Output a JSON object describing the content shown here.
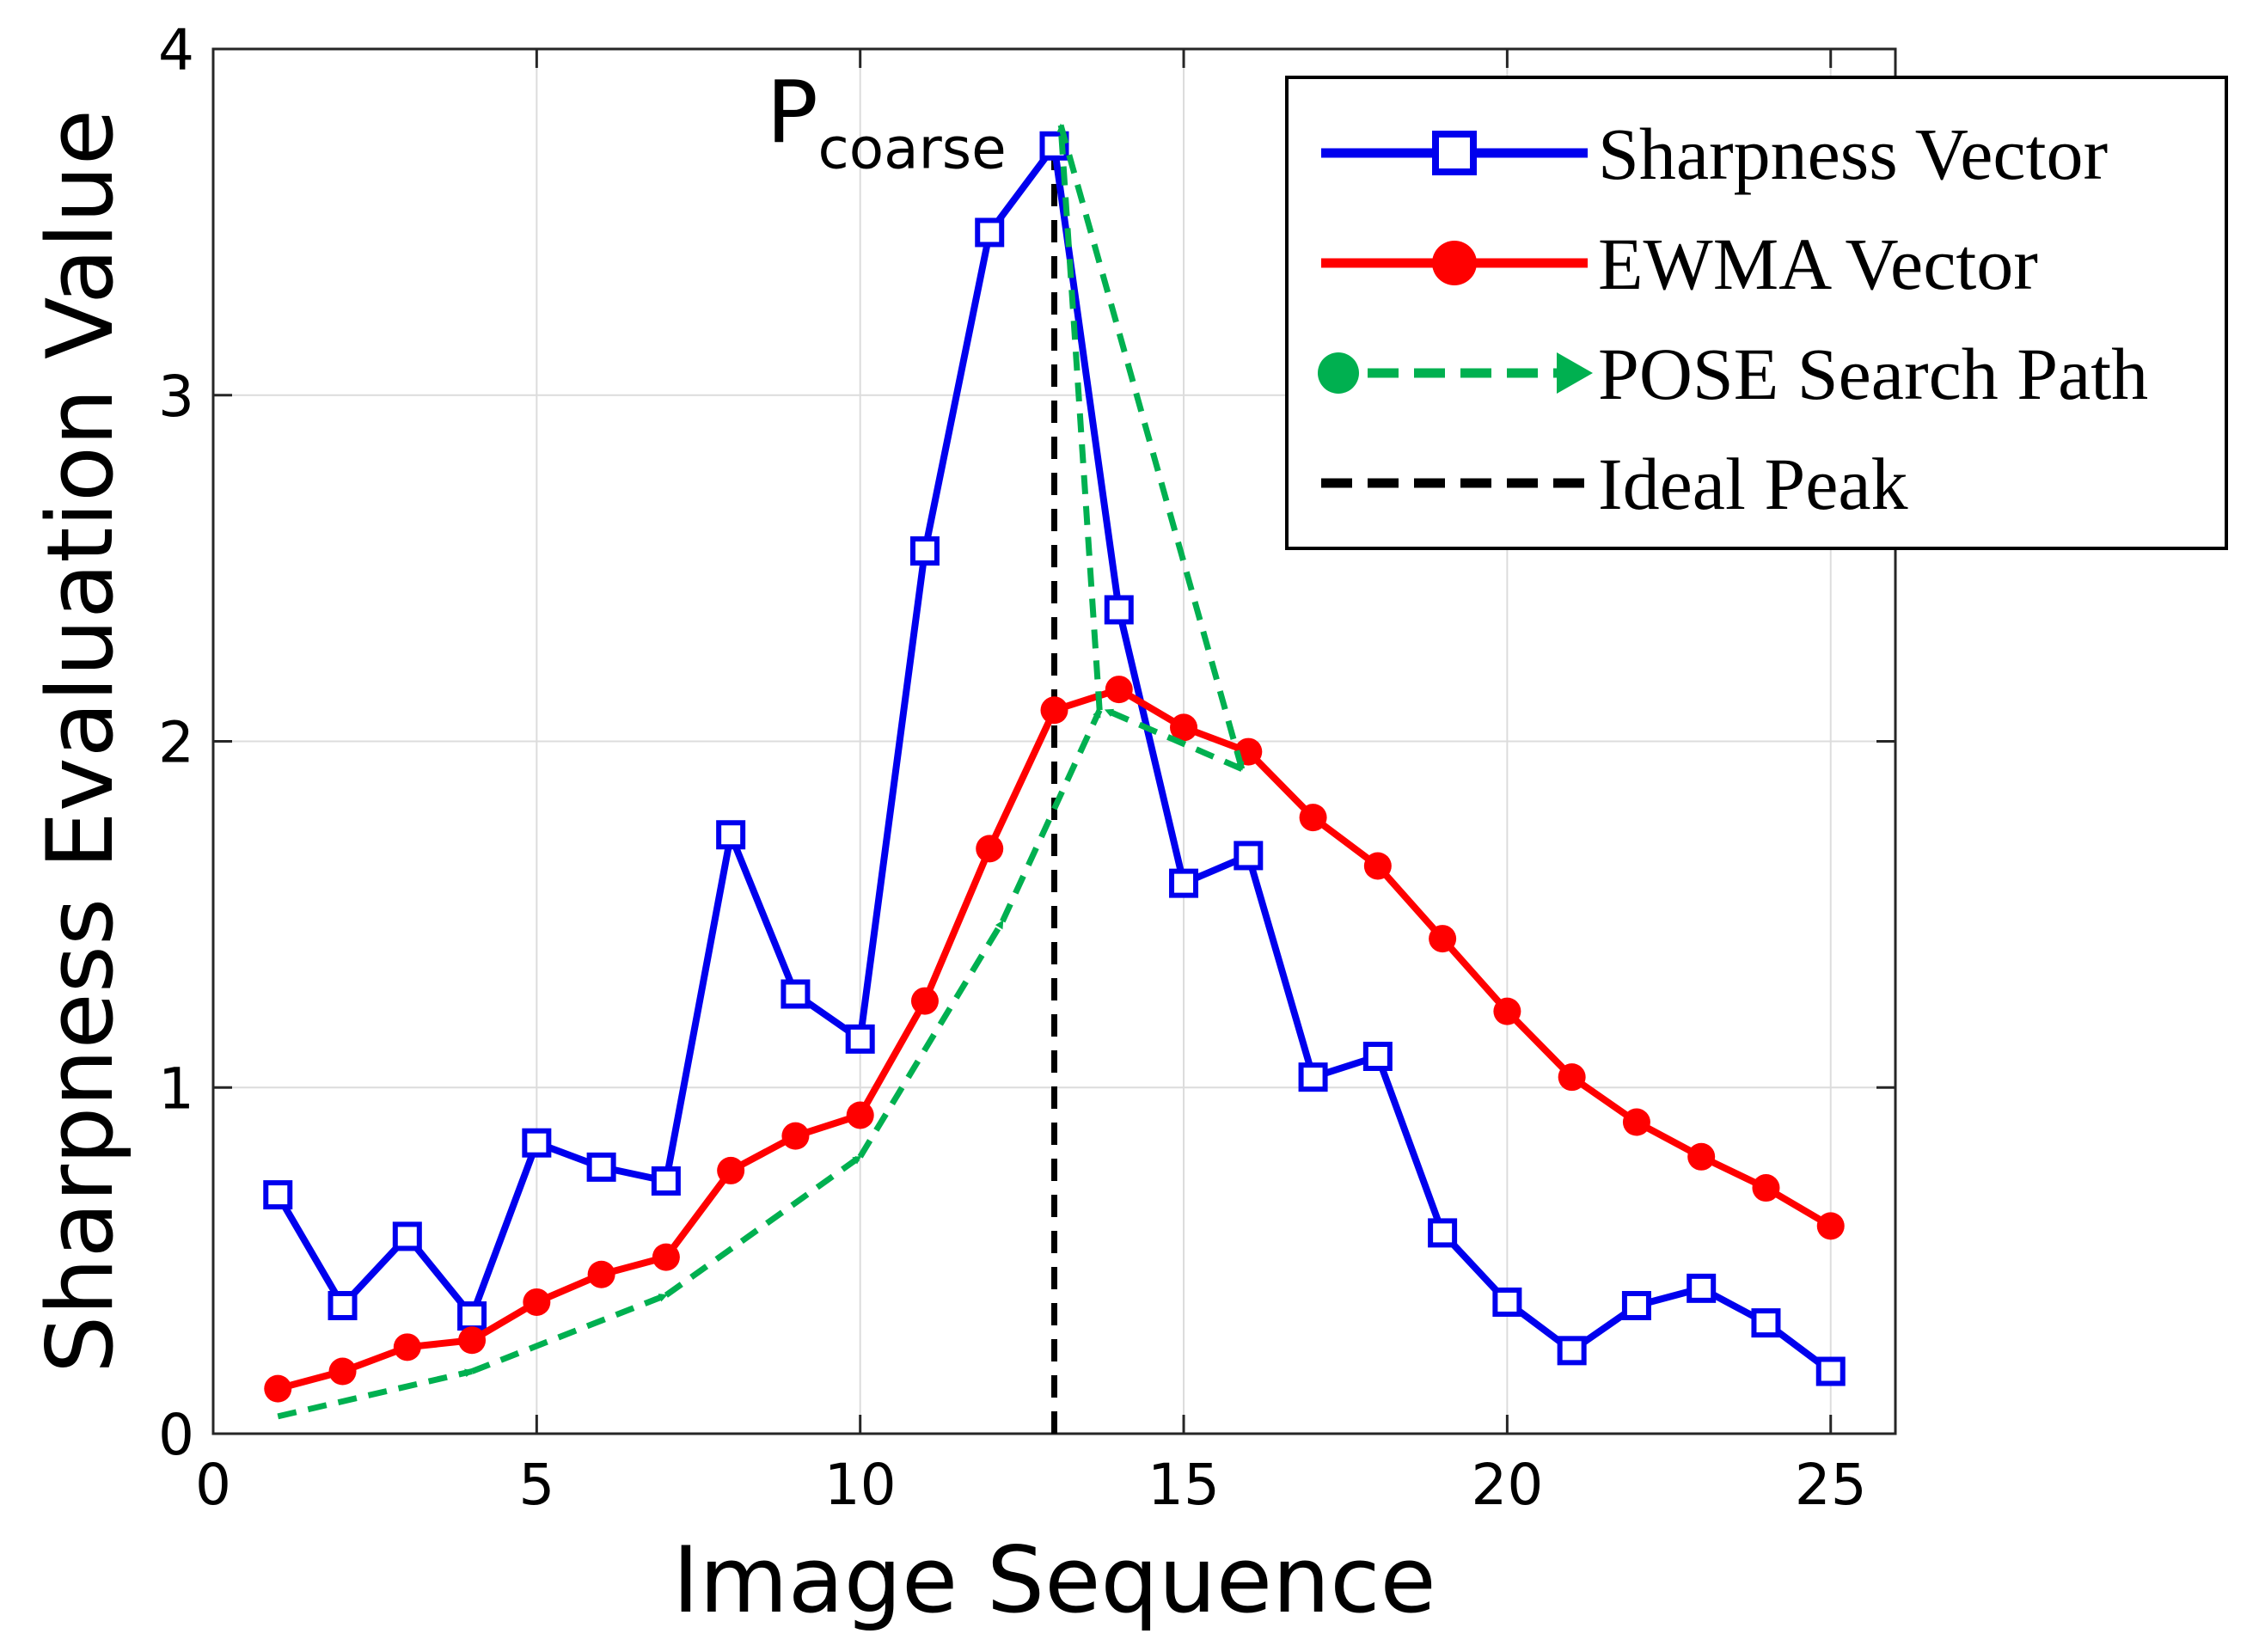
{
  "chart_data": {
    "type": "line",
    "title": "",
    "xlabel": "Image Sequence",
    "ylabel": "Sharpness Evaluation Value",
    "xlim": [
      0,
      26
    ],
    "ylim": [
      0,
      4
    ],
    "xticks": [
      0,
      5,
      10,
      15,
      20,
      25
    ],
    "yticks": [
      0,
      1,
      2,
      3,
      4
    ],
    "grid": true,
    "legend_position": "top-right",
    "annotation": {
      "text": "P",
      "subscript": "coarse",
      "x": 13,
      "y": 3.78
    },
    "ideal_peak": {
      "x": 13,
      "y_from": 0,
      "y_to": 3.72
    },
    "series": [
      {
        "name": "Sharpness Vector",
        "color": "#0000ee",
        "marker": "square",
        "x": [
          1,
          2,
          3,
          4,
          5,
          6,
          7,
          8,
          9,
          10,
          11,
          12,
          13,
          14,
          15,
          16,
          17,
          18,
          19,
          20,
          21,
          22,
          23,
          24,
          25
        ],
        "values": [
          0.69,
          0.37,
          0.57,
          0.34,
          0.84,
          0.77,
          0.73,
          1.73,
          1.27,
          1.14,
          2.55,
          3.47,
          3.72,
          2.38,
          1.59,
          1.67,
          1.03,
          1.09,
          0.58,
          0.38,
          0.24,
          0.37,
          0.42,
          0.32,
          0.18
        ]
      },
      {
        "name": "EWMA Vector",
        "color": "#ff0000",
        "marker": "circle",
        "x": [
          1,
          2,
          3,
          4,
          5,
          6,
          7,
          8,
          9,
          10,
          11,
          12,
          13,
          14,
          15,
          16,
          17,
          18,
          19,
          20,
          21,
          22,
          23,
          24,
          25
        ],
        "values": [
          0.13,
          0.18,
          0.25,
          0.27,
          0.38,
          0.46,
          0.51,
          0.76,
          0.86,
          0.92,
          1.25,
          1.69,
          2.09,
          2.15,
          2.04,
          1.97,
          1.78,
          1.64,
          1.43,
          1.22,
          1.03,
          0.9,
          0.8,
          0.71,
          0.6
        ]
      },
      {
        "name": "POSE Search Path",
        "color": "#00b050",
        "marker": "arrow",
        "x": [
          1,
          4,
          7,
          10,
          12.2,
          13.7,
          13.1,
          15.9,
          13.8
        ],
        "values": [
          0.05,
          0.18,
          0.4,
          0.8,
          1.48,
          2.09,
          3.78,
          1.92,
          2.09
        ]
      }
    ],
    "legend": [
      {
        "label": "Sharpness Vector",
        "color": "#0000ee",
        "style": "solid",
        "marker": "square"
      },
      {
        "label": "EWMA Vector",
        "color": "#ff0000",
        "style": "solid",
        "marker": "circle"
      },
      {
        "label": "POSE Search Path",
        "color": "#00b050",
        "style": "dashed",
        "marker": "arrow"
      },
      {
        "label": "Ideal Peak",
        "color": "#000000",
        "style": "dashed",
        "marker": "none"
      }
    ]
  }
}
